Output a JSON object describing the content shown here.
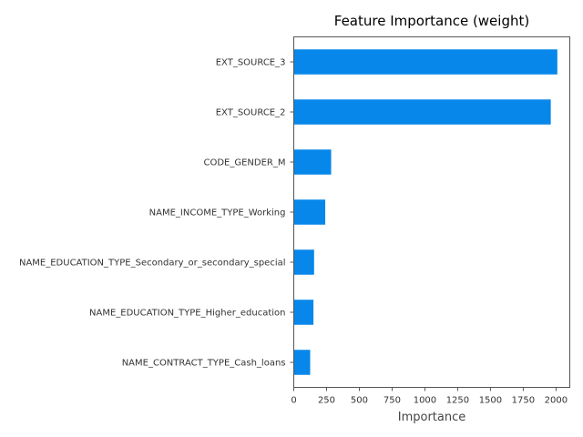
{
  "chart_data": {
    "type": "bar",
    "orientation": "horizontal",
    "title": "Feature Importance (weight)",
    "xlabel": "Importance",
    "ylabel": "",
    "categories": [
      "EXT_SOURCE_3",
      "EXT_SOURCE_2",
      "CODE_GENDER_M",
      "NAME_INCOME_TYPE_Working",
      "NAME_EDUCATION_TYPE_Secondary_or_secondary_special",
      "NAME_EDUCATION_TYPE_Higher_education",
      "NAME_CONTRACT_TYPE_Cash_loans"
    ],
    "values": [
      2010,
      1960,
      285,
      240,
      155,
      150,
      125
    ],
    "xlim": [
      0,
      2105
    ],
    "xticks": [
      "0",
      "250",
      "500",
      "750",
      "1000",
      "1250",
      "1500",
      "1750",
      "2000"
    ],
    "bar_color": "#0787ea",
    "grid": false,
    "legend": "none"
  }
}
